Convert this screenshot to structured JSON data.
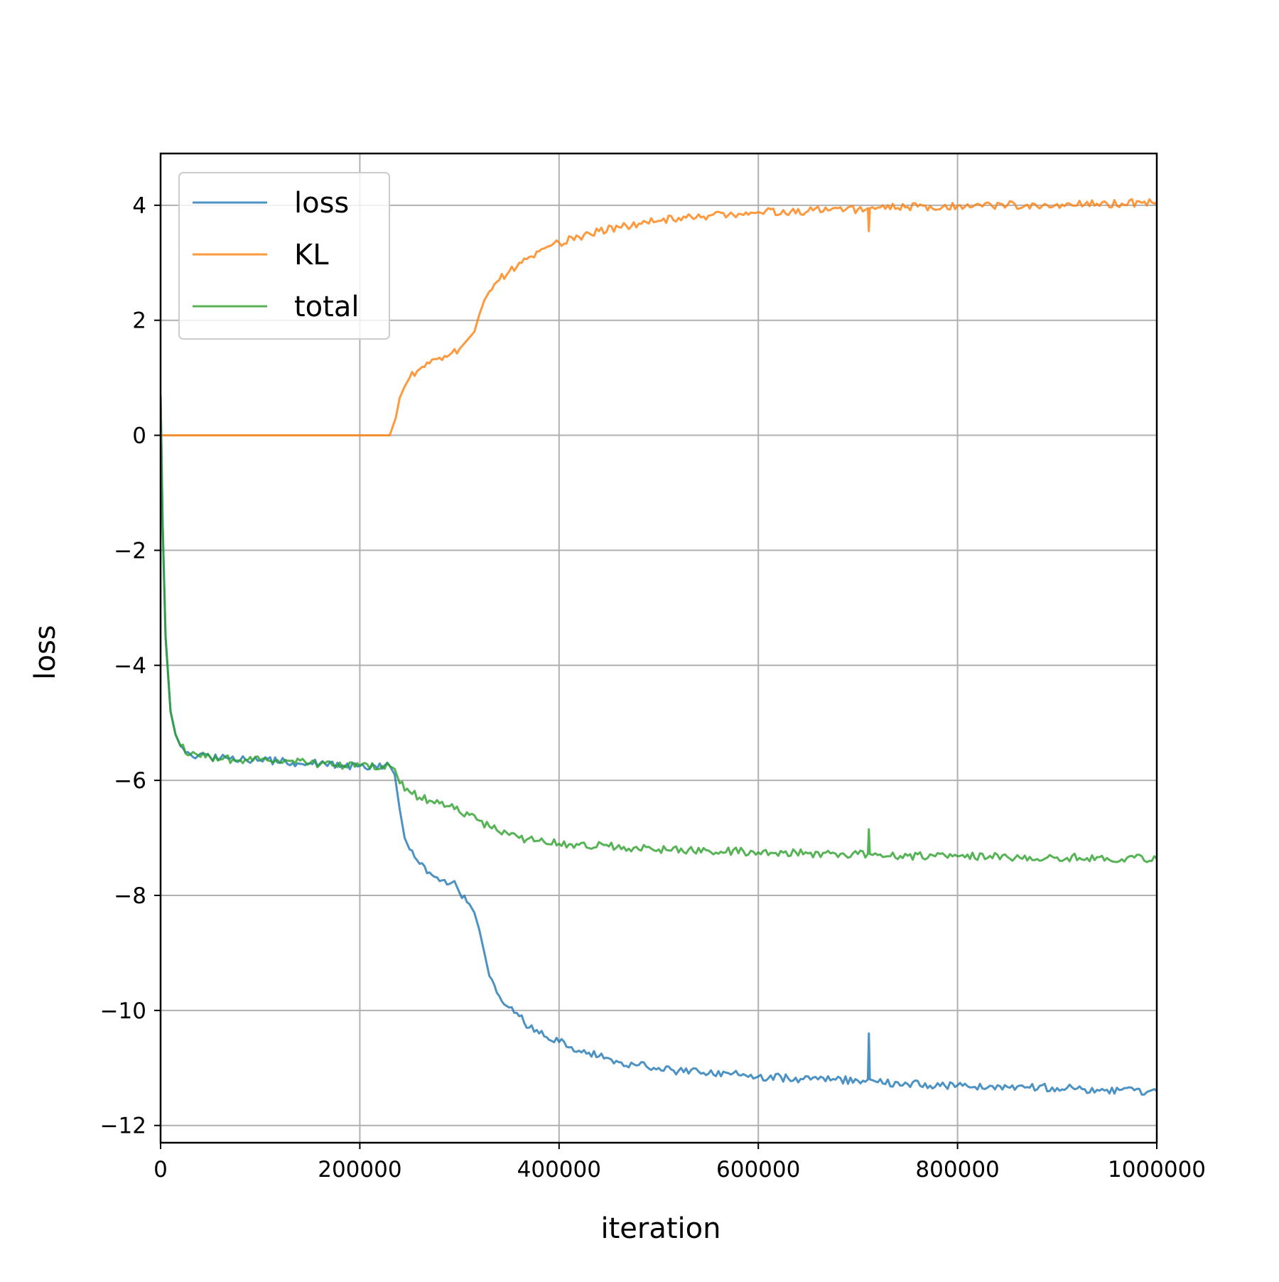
{
  "chart_data": {
    "type": "line",
    "title": "",
    "xlabel": "iteration",
    "ylabel": "loss",
    "xlim": [
      0,
      1000000
    ],
    "ylim": [
      -12.3,
      4.9
    ],
    "x_ticks": [
      0,
      200000,
      400000,
      600000,
      800000,
      1000000
    ],
    "x_tick_labels": [
      "0",
      "200000",
      "400000",
      "600000",
      "800000",
      "1000000"
    ],
    "y_ticks": [
      -12,
      -10,
      -8,
      -6,
      -4,
      -2,
      0,
      2,
      4
    ],
    "y_tick_labels": [
      "−12",
      "−10",
      "−8",
      "−6",
      "−4",
      "−2",
      "0",
      "2",
      "4"
    ],
    "grid": true,
    "legend_position": "upper-left",
    "series": [
      {
        "name": "loss",
        "color": "#1f77b4",
        "x": [
          0,
          2000,
          5000,
          10000,
          15000,
          20000,
          30000,
          50000,
          80000,
          100000,
          150000,
          200000,
          230000,
          235000,
          240000,
          245000,
          250000,
          260000,
          270000,
          280000,
          290000,
          295000,
          300000,
          310000,
          315000,
          320000,
          325000,
          330000,
          340000,
          350000,
          360000,
          370000,
          380000,
          400000,
          420000,
          440000,
          460000,
          480000,
          500000,
          520000,
          550000,
          580000,
          600000,
          630000,
          660000,
          700000,
          710000,
          711000,
          712000,
          720000,
          750000,
          800000,
          850000,
          900000,
          950000,
          990000,
          1000000
        ],
        "y": [
          0.7,
          -1.5,
          -3.5,
          -4.8,
          -5.2,
          -5.4,
          -5.55,
          -5.6,
          -5.65,
          -5.65,
          -5.7,
          -5.75,
          -5.75,
          -5.9,
          -6.5,
          -7.0,
          -7.2,
          -7.45,
          -7.6,
          -7.75,
          -7.8,
          -7.75,
          -7.95,
          -8.15,
          -8.3,
          -8.6,
          -9.0,
          -9.4,
          -9.75,
          -9.95,
          -10.1,
          -10.3,
          -10.4,
          -10.55,
          -10.7,
          -10.8,
          -10.9,
          -10.95,
          -11.0,
          -11.05,
          -11.1,
          -11.12,
          -11.15,
          -11.18,
          -11.2,
          -11.22,
          -11.2,
          -10.4,
          -11.2,
          -11.25,
          -11.28,
          -11.3,
          -11.33,
          -11.35,
          -11.38,
          -11.42,
          -11.4
        ]
      },
      {
        "name": "KL",
        "color": "#ff7f0e",
        "x": [
          0,
          50000,
          100000,
          150000,
          200000,
          230000,
          233000,
          236000,
          240000,
          245000,
          250000,
          260000,
          270000,
          280000,
          290000,
          300000,
          305000,
          310000,
          315000,
          320000,
          325000,
          330000,
          340000,
          350000,
          360000,
          370000,
          380000,
          400000,
          420000,
          440000,
          460000,
          480000,
          500000,
          520000,
          550000,
          580000,
          600000,
          650000,
          700000,
          710000,
          711000,
          712000,
          720000,
          750000,
          800000,
          850000,
          900000,
          950000,
          1000000
        ],
        "y": [
          0,
          0,
          0,
          0,
          0,
          0,
          0.15,
          0.3,
          0.65,
          0.85,
          1.0,
          1.15,
          1.25,
          1.35,
          1.4,
          1.5,
          1.6,
          1.7,
          1.8,
          2.1,
          2.35,
          2.5,
          2.7,
          2.85,
          3.0,
          3.1,
          3.2,
          3.35,
          3.45,
          3.55,
          3.62,
          3.68,
          3.73,
          3.78,
          3.82,
          3.85,
          3.88,
          3.9,
          3.93,
          3.95,
          3.55,
          3.95,
          3.96,
          3.97,
          3.99,
          4.0,
          4.02,
          4.03,
          4.05
        ]
      },
      {
        "name": "total",
        "color": "#2ca02c",
        "x": [
          0,
          2000,
          5000,
          10000,
          15000,
          20000,
          30000,
          50000,
          80000,
          100000,
          150000,
          200000,
          230000,
          235000,
          240000,
          250000,
          260000,
          270000,
          280000,
          290000,
          300000,
          310000,
          320000,
          330000,
          340000,
          350000,
          360000,
          380000,
          400000,
          420000,
          450000,
          500000,
          550000,
          600000,
          650000,
          700000,
          710000,
          711000,
          712000,
          720000,
          750000,
          800000,
          850000,
          900000,
          950000,
          1000000
        ],
        "y": [
          0.7,
          -1.5,
          -3.5,
          -4.8,
          -5.2,
          -5.4,
          -5.55,
          -5.6,
          -5.65,
          -5.65,
          -5.7,
          -5.75,
          -5.75,
          -5.8,
          -6.05,
          -6.2,
          -6.3,
          -6.35,
          -6.4,
          -6.45,
          -6.55,
          -6.6,
          -6.7,
          -6.8,
          -6.9,
          -6.95,
          -7.0,
          -7.05,
          -7.1,
          -7.12,
          -7.15,
          -7.2,
          -7.22,
          -7.25,
          -7.27,
          -7.28,
          -7.28,
          -6.85,
          -7.28,
          -7.3,
          -7.31,
          -7.32,
          -7.33,
          -7.34,
          -7.35,
          -7.36
        ]
      }
    ]
  }
}
